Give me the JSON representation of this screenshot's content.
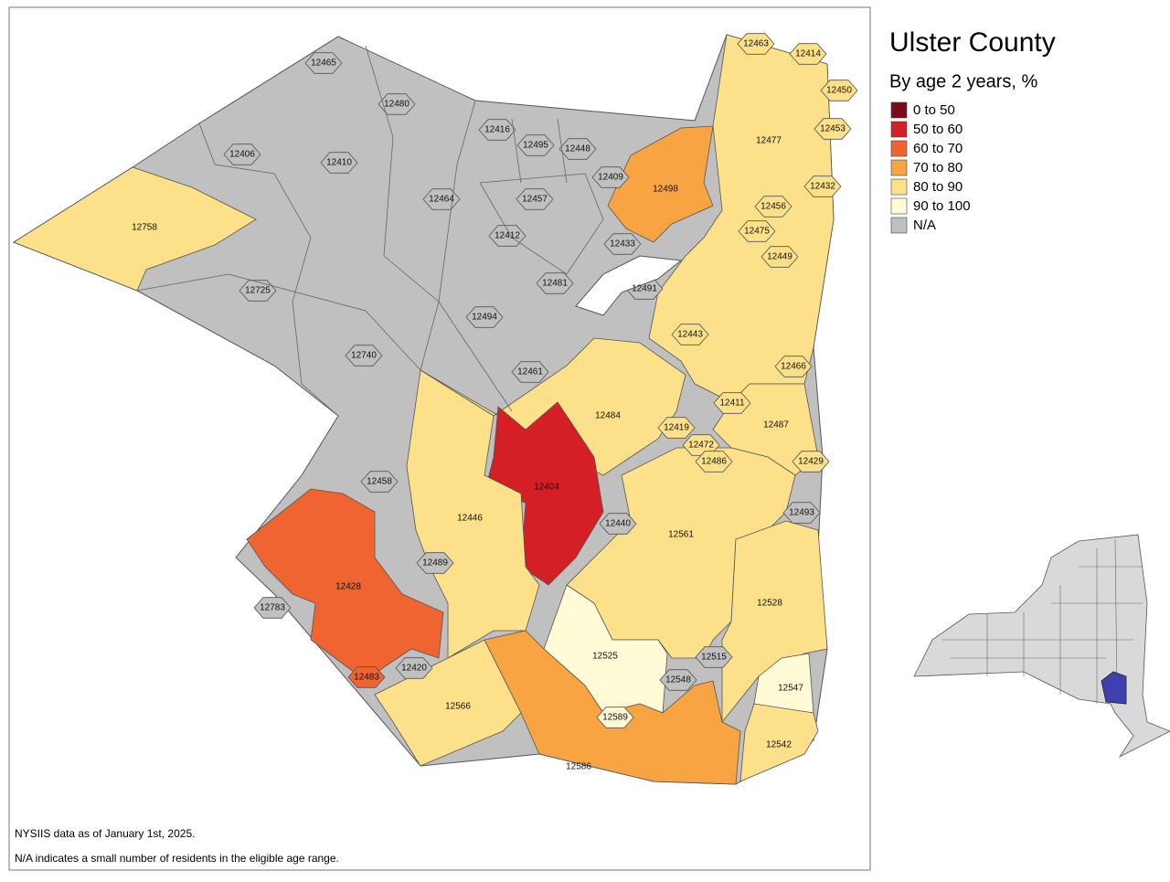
{
  "header": {
    "title": "Ulster County",
    "subtitle": "By age 2 years, %"
  },
  "legend": [
    {
      "label": "0 to 50",
      "color": "#7a0a1c"
    },
    {
      "label": "50 to 60",
      "color": "#d41f26"
    },
    {
      "label": "60 to 70",
      "color": "#f06432"
    },
    {
      "label": "70 to 80",
      "color": "#f8a443"
    },
    {
      "label": "80 to 90",
      "color": "#fde08a"
    },
    {
      "label": "90 to 100",
      "color": "#fefbd6"
    },
    {
      "label": "N/A",
      "color": "#c0c0c0"
    }
  ],
  "regions": [
    {
      "zip": "12465",
      "bin": 6
    },
    {
      "zip": "12480",
      "bin": 6
    },
    {
      "zip": "12406",
      "bin": 6
    },
    {
      "zip": "12410",
      "bin": 6
    },
    {
      "zip": "12416",
      "bin": 6
    },
    {
      "zip": "12495",
      "bin": 6
    },
    {
      "zip": "12448",
      "bin": 6
    },
    {
      "zip": "12409",
      "bin": 6
    },
    {
      "zip": "12457",
      "bin": 6
    },
    {
      "zip": "12464",
      "bin": 6
    },
    {
      "zip": "12758",
      "bin": 4
    },
    {
      "zip": "12412",
      "bin": 6
    },
    {
      "zip": "12433",
      "bin": 6
    },
    {
      "zip": "12725",
      "bin": 6
    },
    {
      "zip": "12481",
      "bin": 6
    },
    {
      "zip": "12491",
      "bin": 6
    },
    {
      "zip": "12494",
      "bin": 6
    },
    {
      "zip": "12740",
      "bin": 6
    },
    {
      "zip": "12461",
      "bin": 6
    },
    {
      "zip": "12463",
      "bin": 4
    },
    {
      "zip": "12414",
      "bin": 4
    },
    {
      "zip": "12450",
      "bin": 4
    },
    {
      "zip": "12477",
      "bin": 4
    },
    {
      "zip": "12453",
      "bin": 4
    },
    {
      "zip": "12498",
      "bin": 3
    },
    {
      "zip": "12432",
      "bin": 4
    },
    {
      "zip": "12456",
      "bin": 4
    },
    {
      "zip": "12475",
      "bin": 4
    },
    {
      "zip": "12449",
      "bin": 4
    },
    {
      "zip": "12443",
      "bin": 4
    },
    {
      "zip": "12466",
      "bin": 4
    },
    {
      "zip": "12411",
      "bin": 4
    },
    {
      "zip": "12484",
      "bin": 4
    },
    {
      "zip": "12487",
      "bin": 4
    },
    {
      "zip": "12419",
      "bin": 4
    },
    {
      "zip": "12472",
      "bin": 4
    },
    {
      "zip": "12486",
      "bin": 4
    },
    {
      "zip": "12429",
      "bin": 4
    },
    {
      "zip": "12404",
      "bin": 1
    },
    {
      "zip": "12458",
      "bin": 6
    },
    {
      "zip": "12446",
      "bin": 4
    },
    {
      "zip": "12440",
      "bin": 6
    },
    {
      "zip": "12493",
      "bin": 6
    },
    {
      "zip": "12561",
      "bin": 4
    },
    {
      "zip": "12489",
      "bin": 6
    },
    {
      "zip": "12428",
      "bin": 2
    },
    {
      "zip": "12783",
      "bin": 6
    },
    {
      "zip": "12528",
      "bin": 4
    },
    {
      "zip": "12525",
      "bin": 5
    },
    {
      "zip": "12515",
      "bin": 6
    },
    {
      "zip": "12548",
      "bin": 6
    },
    {
      "zip": "12547",
      "bin": 5
    },
    {
      "zip": "12420",
      "bin": 6
    },
    {
      "zip": "12483",
      "bin": 2
    },
    {
      "zip": "12566",
      "bin": 4
    },
    {
      "zip": "12589",
      "bin": 5
    },
    {
      "zip": "12542",
      "bin": 4
    },
    {
      "zip": "12586",
      "bin": 3
    }
  ],
  "notes": [
    "NYSIIS data as of January 1st, 2025.",
    "N/A indicates a small number of residents in the eligible age range."
  ]
}
